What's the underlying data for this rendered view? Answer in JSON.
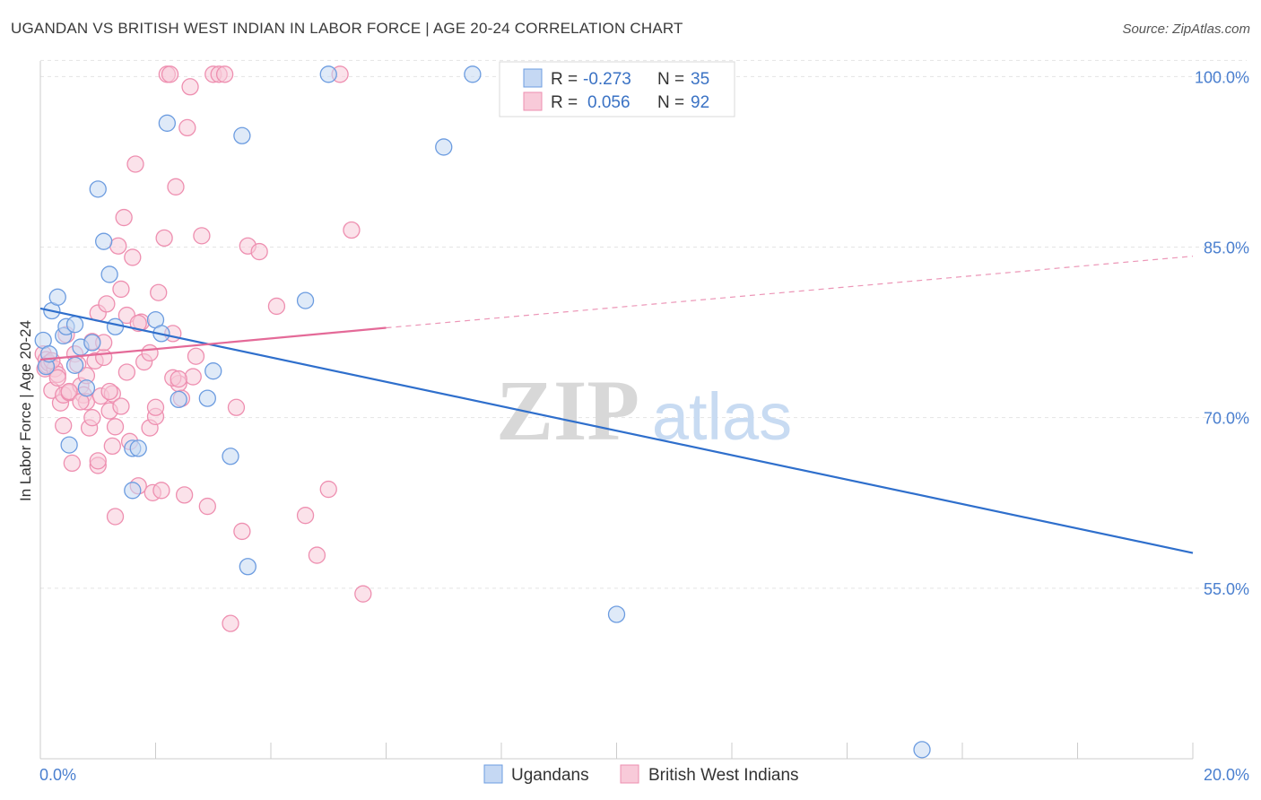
{
  "title": "UGANDAN VS BRITISH WEST INDIAN IN LABOR FORCE | AGE 20-24 CORRELATION CHART",
  "source": "Source: ZipAtlas.com",
  "watermark": {
    "zip": "ZIP",
    "atlas": "atlas"
  },
  "colors": {
    "blue_fill": "#c5d8f3",
    "blue_stroke": "#6c9ce0",
    "blue_line": "#2f6fcc",
    "pink_fill": "#f8cad9",
    "pink_stroke": "#ee8fb0",
    "pink_line": "#e46a98",
    "grid": "#e4e4e4",
    "tick": "#4a7fcf"
  },
  "chart_data": {
    "type": "scatter",
    "xlabel": "",
    "ylabel": "In Labor Force | Age 20-24",
    "xlim": [
      0,
      20
    ],
    "ylim": [
      40,
      102
    ],
    "x_tick_labels": [
      {
        "value": 0,
        "label": "0.0%"
      },
      {
        "value": 20,
        "label": "20.0%"
      }
    ],
    "y_tick_labels": [
      {
        "value": 100,
        "label": "100.0%"
      },
      {
        "value": 85,
        "label": "85.0%"
      },
      {
        "value": 70,
        "label": "70.0%"
      },
      {
        "value": 55,
        "label": "55.0%"
      }
    ],
    "legend": [
      {
        "r_label": "R = ",
        "r_value": "-0.273",
        "n_label": "N = ",
        "n_value": "35"
      },
      {
        "r_label": "R = ",
        "r_value": "0.056",
        "n_label": "N = ",
        "n_value": "92"
      }
    ],
    "series": [
      {
        "name": "Ugandans",
        "color": "blue",
        "trend": {
          "x0": 0,
          "y0": 79.6,
          "x1": 20,
          "y1": 58.1,
          "dashed_to": null
        },
        "points": [
          [
            0.05,
            76.8
          ],
          [
            0.1,
            74.5
          ],
          [
            0.15,
            75.6
          ],
          [
            0.2,
            79.4
          ],
          [
            0.3,
            80.6
          ],
          [
            0.4,
            77.2
          ],
          [
            0.45,
            78.0
          ],
          [
            0.5,
            67.6
          ],
          [
            0.6,
            78.2
          ],
          [
            0.6,
            74.6
          ],
          [
            0.7,
            76.2
          ],
          [
            0.8,
            72.6
          ],
          [
            0.9,
            76.6
          ],
          [
            1.0,
            90.1
          ],
          [
            1.1,
            85.5
          ],
          [
            1.2,
            82.6
          ],
          [
            1.3,
            78.0
          ],
          [
            1.6,
            67.3
          ],
          [
            1.7,
            67.3
          ],
          [
            2.0,
            78.6
          ],
          [
            2.1,
            77.4
          ],
          [
            2.2,
            95.9
          ],
          [
            2.4,
            71.6
          ],
          [
            2.9,
            71.7
          ],
          [
            3.0,
            74.1
          ],
          [
            3.3,
            66.6
          ],
          [
            3.5,
            94.8
          ],
          [
            3.6,
            56.9
          ],
          [
            4.6,
            80.3
          ],
          [
            5.0,
            100.2
          ],
          [
            7.0,
            93.8
          ],
          [
            7.5,
            100.2
          ],
          [
            10.0,
            52.7
          ],
          [
            15.3,
            40.8
          ],
          [
            1.6,
            63.6
          ]
        ]
      },
      {
        "name": "British West Indians",
        "color": "pink",
        "trend": {
          "x0": 0,
          "y0": 75.1,
          "x1": 6.0,
          "y1": 77.9,
          "dashed_to": {
            "x": 20,
            "y": 84.2
          }
        },
        "points": [
          [
            0.05,
            75.6
          ],
          [
            0.08,
            74.3
          ],
          [
            0.1,
            75.1
          ],
          [
            0.12,
            74.6
          ],
          [
            0.15,
            74.8
          ],
          [
            0.2,
            72.4
          ],
          [
            0.25,
            74.3
          ],
          [
            0.3,
            73.8
          ],
          [
            0.35,
            71.3
          ],
          [
            0.4,
            69.3
          ],
          [
            0.4,
            72.0
          ],
          [
            0.45,
            77.3
          ],
          [
            0.5,
            72.2
          ],
          [
            0.55,
            66.0
          ],
          [
            0.6,
            75.6
          ],
          [
            0.65,
            74.7
          ],
          [
            0.7,
            72.8
          ],
          [
            0.75,
            72.0
          ],
          [
            0.8,
            71.4
          ],
          [
            0.85,
            69.1
          ],
          [
            0.9,
            76.7
          ],
          [
            0.95,
            75.0
          ],
          [
            1.0,
            79.2
          ],
          [
            1.0,
            65.8
          ],
          [
            1.05,
            71.9
          ],
          [
            1.1,
            75.3
          ],
          [
            1.15,
            80.0
          ],
          [
            1.2,
            70.6
          ],
          [
            1.25,
            72.1
          ],
          [
            1.3,
            69.2
          ],
          [
            1.3,
            61.3
          ],
          [
            1.35,
            85.1
          ],
          [
            1.4,
            81.3
          ],
          [
            1.45,
            87.6
          ],
          [
            1.5,
            79.0
          ],
          [
            1.55,
            67.9
          ],
          [
            1.6,
            84.1
          ],
          [
            1.65,
            92.3
          ],
          [
            1.7,
            64.0
          ],
          [
            1.75,
            78.4
          ],
          [
            1.8,
            74.9
          ],
          [
            1.9,
            69.1
          ],
          [
            1.95,
            63.4
          ],
          [
            2.0,
            70.1
          ],
          [
            2.05,
            81.0
          ],
          [
            2.1,
            63.6
          ],
          [
            2.15,
            85.8
          ],
          [
            2.2,
            100.2
          ],
          [
            2.25,
            100.2
          ],
          [
            2.3,
            77.4
          ],
          [
            2.35,
            90.3
          ],
          [
            2.4,
            73.0
          ],
          [
            2.45,
            71.7
          ],
          [
            2.5,
            63.2
          ],
          [
            2.55,
            95.5
          ],
          [
            2.6,
            99.1
          ],
          [
            2.65,
            73.6
          ],
          [
            2.7,
            75.4
          ],
          [
            2.8,
            86.0
          ],
          [
            2.9,
            62.2
          ],
          [
            3.0,
            100.2
          ],
          [
            3.1,
            100.2
          ],
          [
            3.2,
            100.2
          ],
          [
            3.3,
            51.9
          ],
          [
            3.4,
            70.9
          ],
          [
            3.5,
            60.0
          ],
          [
            3.6,
            85.1
          ],
          [
            3.8,
            84.6
          ],
          [
            4.1,
            79.8
          ],
          [
            4.6,
            61.4
          ],
          [
            4.8,
            57.9
          ],
          [
            5.0,
            63.7
          ],
          [
            5.2,
            100.2
          ],
          [
            5.4,
            86.5
          ],
          [
            5.6,
            54.5
          ],
          [
            0.2,
            75.0
          ],
          [
            0.3,
            73.5
          ],
          [
            0.5,
            72.3
          ],
          [
            0.7,
            71.4
          ],
          [
            0.8,
            73.7
          ],
          [
            0.9,
            70.0
          ],
          [
            1.1,
            76.6
          ],
          [
            1.2,
            72.3
          ],
          [
            1.4,
            71.0
          ],
          [
            1.5,
            74.0
          ],
          [
            1.7,
            78.3
          ],
          [
            1.9,
            75.7
          ],
          [
            2.0,
            70.9
          ],
          [
            2.3,
            73.5
          ],
          [
            2.4,
            73.4
          ],
          [
            1.0,
            66.2
          ],
          [
            1.25,
            67.5
          ]
        ]
      }
    ]
  }
}
